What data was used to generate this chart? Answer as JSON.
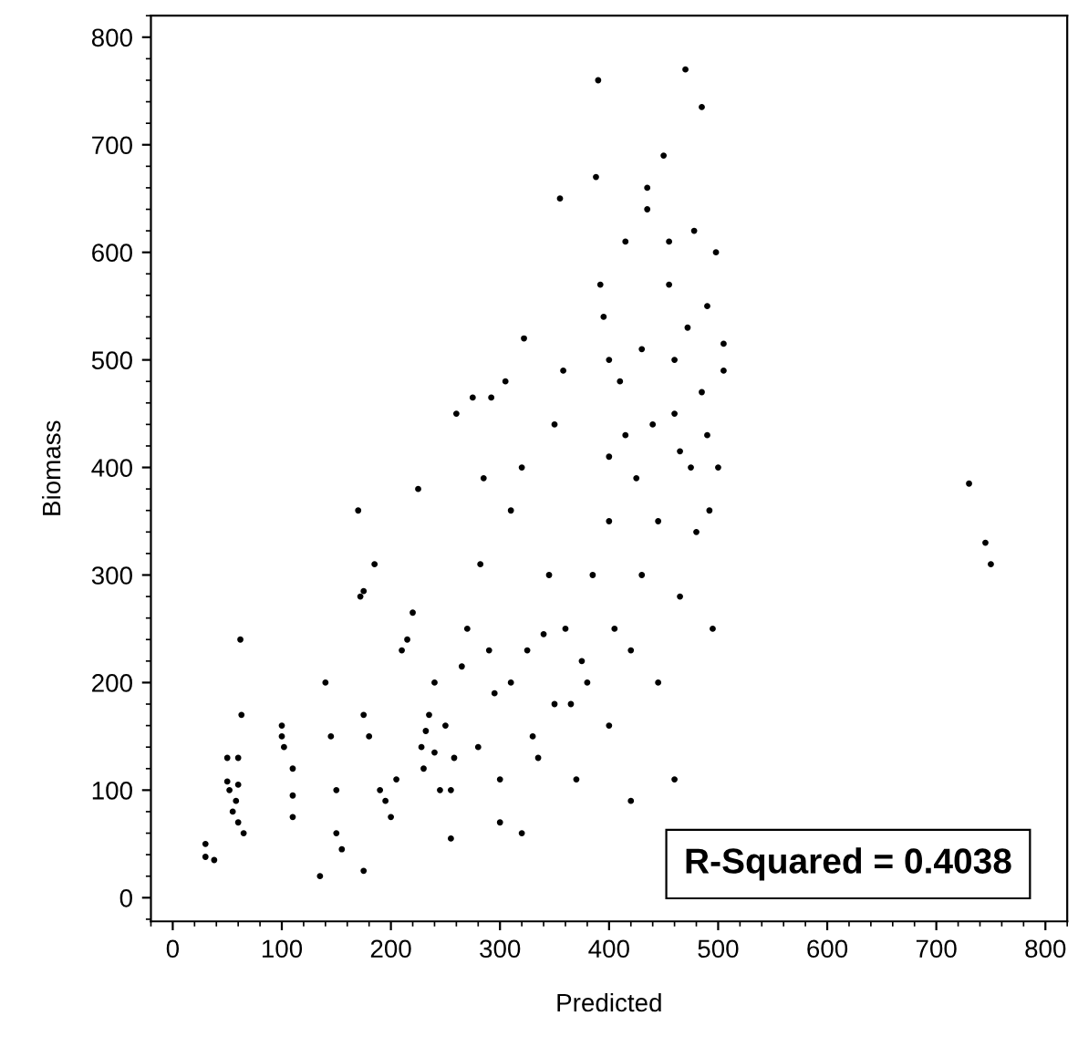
{
  "chart_data": {
    "type": "scatter",
    "xlabel": "Predicted",
    "ylabel": "Biomass",
    "annotations": [
      "R-Squared = 0.4038"
    ],
    "xlim": [
      -20,
      820
    ],
    "ylim": [
      -22,
      820
    ],
    "xticks": [
      0,
      100,
      200,
      300,
      400,
      500,
      600,
      700,
      800
    ],
    "yticks": [
      0,
      100,
      200,
      300,
      400,
      500,
      600,
      700,
      800
    ],
    "marker": "circle",
    "grid": false,
    "legend": false,
    "series": [
      {
        "color": "#000000",
        "x": [
          30,
          30,
          38,
          50,
          50,
          52,
          55,
          58,
          60,
          60,
          60,
          62,
          63,
          65,
          100,
          100,
          102,
          110,
          110,
          110,
          135,
          140,
          145,
          150,
          150,
          155,
          170,
          172,
          175,
          175,
          175,
          180,
          185,
          190,
          195,
          200,
          205,
          210,
          215,
          220,
          225,
          228,
          230,
          232,
          235,
          240,
          240,
          245,
          250,
          255,
          255,
          258,
          260,
          265,
          270,
          275,
          280,
          282,
          285,
          290,
          292,
          295,
          300,
          300,
          305,
          310,
          310,
          320,
          320,
          322,
          325,
          330,
          335,
          340,
          345,
          350,
          350,
          355,
          358,
          360,
          365,
          370,
          375,
          380,
          385,
          390,
          388,
          392,
          395,
          400,
          400,
          400,
          400,
          405,
          410,
          415,
          415,
          420,
          420,
          425,
          430,
          430,
          435,
          435,
          440,
          445,
          445,
          450,
          455,
          455,
          460,
          460,
          460,
          465,
          465,
          470,
          472,
          475,
          478,
          480,
          485,
          485,
          490,
          490,
          492,
          495,
          498,
          500,
          505,
          505,
          730,
          745,
          750
        ],
        "values": [
          50,
          38,
          35,
          130,
          108,
          100,
          80,
          90,
          130,
          105,
          70,
          240,
          170,
          60,
          160,
          150,
          140,
          120,
          95,
          75,
          20,
          200,
          150,
          100,
          60,
          45,
          360,
          280,
          285,
          170,
          25,
          150,
          310,
          100,
          90,
          75,
          110,
          230,
          240,
          265,
          380,
          140,
          120,
          155,
          170,
          200,
          135,
          100,
          160,
          55,
          100,
          130,
          450,
          215,
          250,
          465,
          140,
          310,
          390,
          230,
          465,
          190,
          70,
          110,
          480,
          360,
          200,
          400,
          60,
          520,
          230,
          150,
          130,
          245,
          300,
          180,
          440,
          650,
          490,
          250,
          180,
          110,
          220,
          200,
          300,
          760,
          670,
          570,
          540,
          500,
          410,
          350,
          160,
          250,
          480,
          430,
          610,
          230,
          90,
          390,
          510,
          300,
          640,
          660,
          440,
          350,
          200,
          690,
          610,
          570,
          500,
          450,
          110,
          415,
          280,
          770,
          530,
          400,
          620,
          340,
          735,
          470,
          550,
          430,
          360,
          250,
          600,
          400,
          515,
          490,
          385,
          330,
          310
        ]
      }
    ]
  }
}
